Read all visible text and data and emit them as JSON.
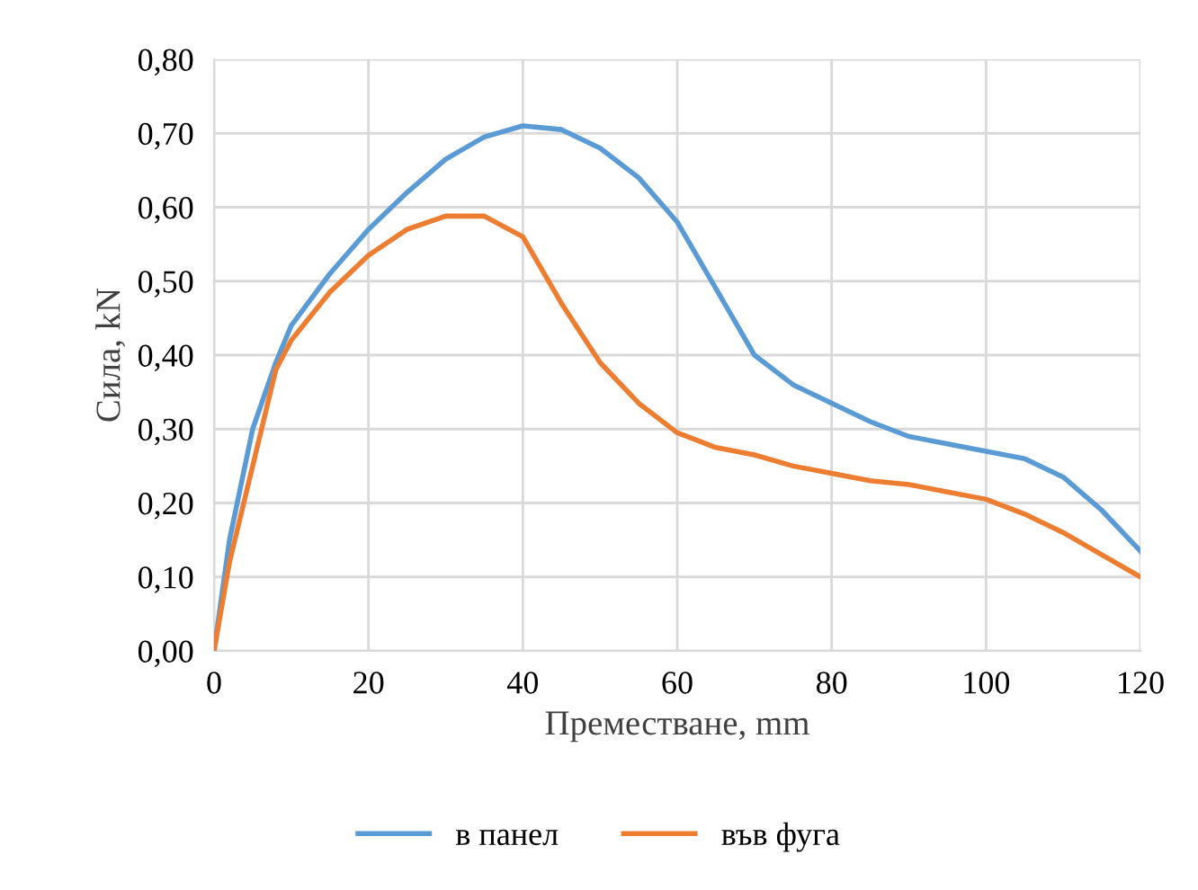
{
  "chart_data": {
    "type": "line",
    "xlabel": "Преместване, mm",
    "ylabel": "Сила, kN",
    "series": [
      {
        "name": "в панел",
        "color": "#5b9bd5",
        "x": [
          0,
          2,
          5,
          8,
          10,
          15,
          20,
          25,
          30,
          35,
          40,
          45,
          50,
          55,
          60,
          65,
          70,
          75,
          80,
          85,
          90,
          95,
          100,
          105,
          110,
          115,
          120
        ],
        "values": [
          0,
          0.15,
          0.3,
          0.39,
          0.44,
          0.51,
          0.57,
          0.62,
          0.665,
          0.695,
          0.71,
          0.705,
          0.68,
          0.64,
          0.58,
          0.49,
          0.4,
          0.36,
          0.335,
          0.31,
          0.29,
          0.28,
          0.27,
          0.26,
          0.235,
          0.19,
          0.135
        ]
      },
      {
        "name": "във фуга",
        "color": "#ed7d31",
        "x": [
          0,
          2,
          5,
          8,
          10,
          15,
          20,
          25,
          30,
          35,
          40,
          45,
          50,
          55,
          60,
          65,
          70,
          75,
          80,
          85,
          90,
          95,
          100,
          105,
          110,
          115,
          120
        ],
        "values": [
          0,
          0.12,
          0.25,
          0.38,
          0.42,
          0.485,
          0.535,
          0.57,
          0.588,
          0.588,
          0.56,
          0.47,
          0.39,
          0.335,
          0.295,
          0.275,
          0.265,
          0.25,
          0.24,
          0.23,
          0.225,
          0.215,
          0.205,
          0.185,
          0.16,
          0.13,
          0.1
        ]
      }
    ],
    "xlim": [
      0,
      120
    ],
    "xticks": [
      0,
      20,
      40,
      60,
      80,
      100,
      120
    ],
    "ylim": [
      0,
      0.8
    ],
    "yticks": [
      {
        "value": 0,
        "label": "0,00"
      },
      {
        "value": 0.1,
        "label": "0,10"
      },
      {
        "value": 0.2,
        "label": "0,20"
      },
      {
        "value": 0.3,
        "label": "0,30"
      },
      {
        "value": 0.4,
        "label": "0,40"
      },
      {
        "value": 0.5,
        "label": "0,50"
      },
      {
        "value": 0.6,
        "label": "0,60"
      },
      {
        "value": 0.7,
        "label": "0,70"
      },
      {
        "value": 0.8,
        "label": "0,80"
      }
    ],
    "grid": true,
    "legend": "bottom",
    "marker": "none",
    "line_style": "solid"
  }
}
